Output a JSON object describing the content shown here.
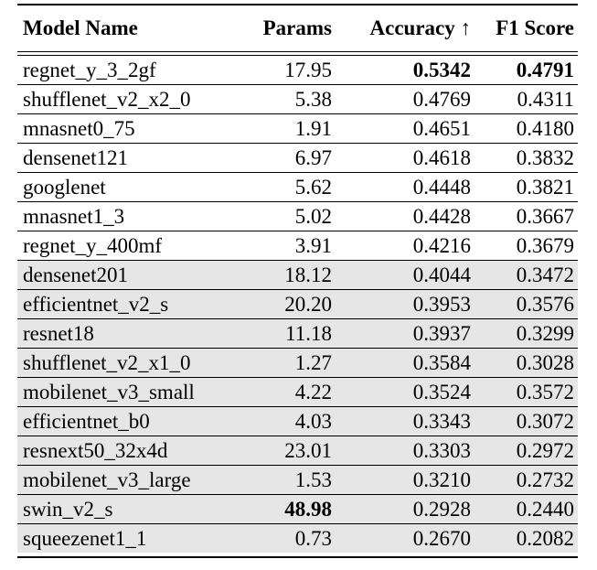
{
  "table": {
    "headers": {
      "name": "Model Name",
      "params": "Params",
      "accuracy": "Accuracy ↑",
      "f1": "F1 Score"
    },
    "rows": [
      {
        "name": "regnet_y_3_2gf",
        "params": "17.95",
        "accuracy": "0.5342",
        "f1": "0.4791",
        "shaded": false,
        "bold_params": false,
        "bold_acc": true,
        "bold_f1": true
      },
      {
        "name": "shufflenet_v2_x2_0",
        "params": "5.38",
        "accuracy": "0.4769",
        "f1": "0.4311",
        "shaded": false,
        "bold_params": false,
        "bold_acc": false,
        "bold_f1": false
      },
      {
        "name": "mnasnet0_75",
        "params": "1.91",
        "accuracy": "0.4651",
        "f1": "0.4180",
        "shaded": false,
        "bold_params": false,
        "bold_acc": false,
        "bold_f1": false
      },
      {
        "name": "densenet121",
        "params": "6.97",
        "accuracy": "0.4618",
        "f1": "0.3832",
        "shaded": false,
        "bold_params": false,
        "bold_acc": false,
        "bold_f1": false
      },
      {
        "name": "googlenet",
        "params": "5.62",
        "accuracy": "0.4448",
        "f1": "0.3821",
        "shaded": false,
        "bold_params": false,
        "bold_acc": false,
        "bold_f1": false
      },
      {
        "name": "mnasnet1_3",
        "params": "5.02",
        "accuracy": "0.4428",
        "f1": "0.3667",
        "shaded": false,
        "bold_params": false,
        "bold_acc": false,
        "bold_f1": false
      },
      {
        "name": "regnet_y_400mf",
        "params": "3.91",
        "accuracy": "0.4216",
        "f1": "0.3679",
        "shaded": false,
        "bold_params": false,
        "bold_acc": false,
        "bold_f1": false
      },
      {
        "name": "densenet201",
        "params": "18.12",
        "accuracy": "0.4044",
        "f1": "0.3472",
        "shaded": true,
        "bold_params": false,
        "bold_acc": false,
        "bold_f1": false
      },
      {
        "name": "efficientnet_v2_s",
        "params": "20.20",
        "accuracy": "0.3953",
        "f1": "0.3576",
        "shaded": true,
        "bold_params": false,
        "bold_acc": false,
        "bold_f1": false
      },
      {
        "name": "resnet18",
        "params": "11.18",
        "accuracy": "0.3937",
        "f1": "0.3299",
        "shaded": true,
        "bold_params": false,
        "bold_acc": false,
        "bold_f1": false
      },
      {
        "name": "shufflenet_v2_x1_0",
        "params": "1.27",
        "accuracy": "0.3584",
        "f1": "0.3028",
        "shaded": true,
        "bold_params": false,
        "bold_acc": false,
        "bold_f1": false
      },
      {
        "name": "mobilenet_v3_small",
        "params": "4.22",
        "accuracy": "0.3524",
        "f1": "0.3572",
        "shaded": true,
        "bold_params": false,
        "bold_acc": false,
        "bold_f1": false
      },
      {
        "name": "efficientnet_b0",
        "params": "4.03",
        "accuracy": "0.3343",
        "f1": "0.3072",
        "shaded": true,
        "bold_params": false,
        "bold_acc": false,
        "bold_f1": false
      },
      {
        "name": "resnext50_32x4d",
        "params": "23.01",
        "accuracy": "0.3303",
        "f1": "0.2972",
        "shaded": true,
        "bold_params": false,
        "bold_acc": false,
        "bold_f1": false
      },
      {
        "name": "mobilenet_v3_large",
        "params": "1.53",
        "accuracy": "0.3210",
        "f1": "0.2732",
        "shaded": true,
        "bold_params": false,
        "bold_acc": false,
        "bold_f1": false
      },
      {
        "name": "swin_v2_s",
        "params": "48.98",
        "accuracy": "0.2928",
        "f1": "0.2440",
        "shaded": true,
        "bold_params": true,
        "bold_acc": false,
        "bold_f1": false
      },
      {
        "name": "squeezenet1_1",
        "params": "0.73",
        "accuracy": "0.2670",
        "f1": "0.2082",
        "shaded": true,
        "bold_params": false,
        "bold_acc": false,
        "bold_f1": false
      }
    ]
  },
  "colors": {
    "shade": "#e6e6e6",
    "text": "#000000",
    "rule": "#000000"
  }
}
